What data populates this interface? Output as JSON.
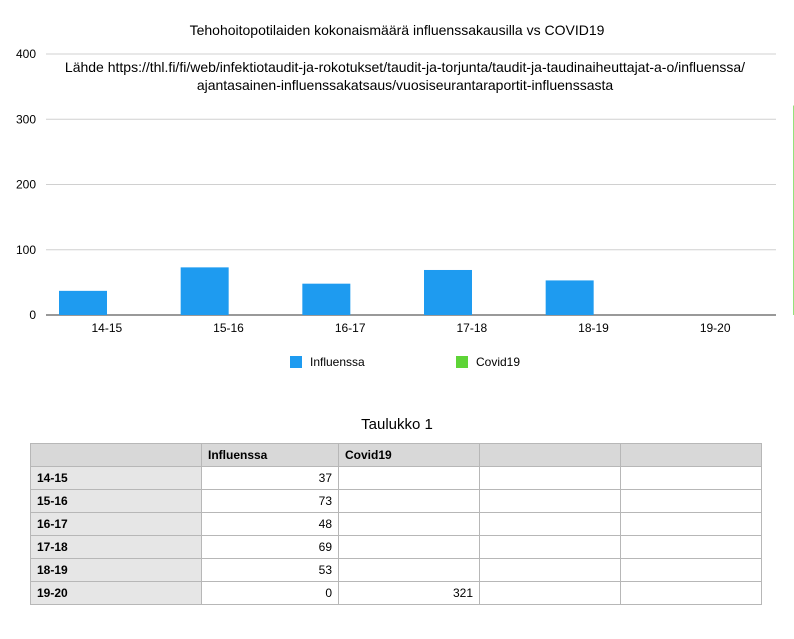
{
  "chart_data": {
    "type": "bar",
    "title": "Tehohoitopotilaiden kokonaismäärä influenssakausilla vs COVID19",
    "subtitle_lines": [
      "Lähde https://thl.fi/fi/web/infektiotaudit-ja-rokotukset/taudit-ja-torjunta/taudit-ja-taudinaiheuttajat-a-o/influenssa/",
      "ajantasainen-influenssakatsaus/vuosiseurantaraportit-influenssasta"
    ],
    "categories": [
      "14-15",
      "15-16",
      "16-17",
      "17-18",
      "18-19",
      "19-20"
    ],
    "series": [
      {
        "name": "Influenssa",
        "color": "#1e9bf0",
        "values": [
          37,
          73,
          48,
          69,
          53,
          0
        ]
      },
      {
        "name": "Covid19",
        "color": "#5ed437",
        "values": [
          null,
          null,
          null,
          null,
          null,
          321
        ]
      }
    ],
    "ylim": [
      0,
      400
    ],
    "yticks": [
      0,
      100,
      200,
      300,
      400
    ],
    "grid": true,
    "legend_position": "bottom"
  },
  "table": {
    "title": "Taulukko 1",
    "headers": [
      "",
      "Influenssa",
      "Covid19",
      "",
      ""
    ],
    "rows": [
      {
        "label": "14-15",
        "influenssa": "37",
        "covid19": ""
      },
      {
        "label": "15-16",
        "influenssa": "73",
        "covid19": ""
      },
      {
        "label": "16-17",
        "influenssa": "48",
        "covid19": ""
      },
      {
        "label": "17-18",
        "influenssa": "69",
        "covid19": ""
      },
      {
        "label": "18-19",
        "influenssa": "53",
        "covid19": ""
      },
      {
        "label": "19-20",
        "influenssa": "0",
        "covid19": "321"
      }
    ]
  }
}
